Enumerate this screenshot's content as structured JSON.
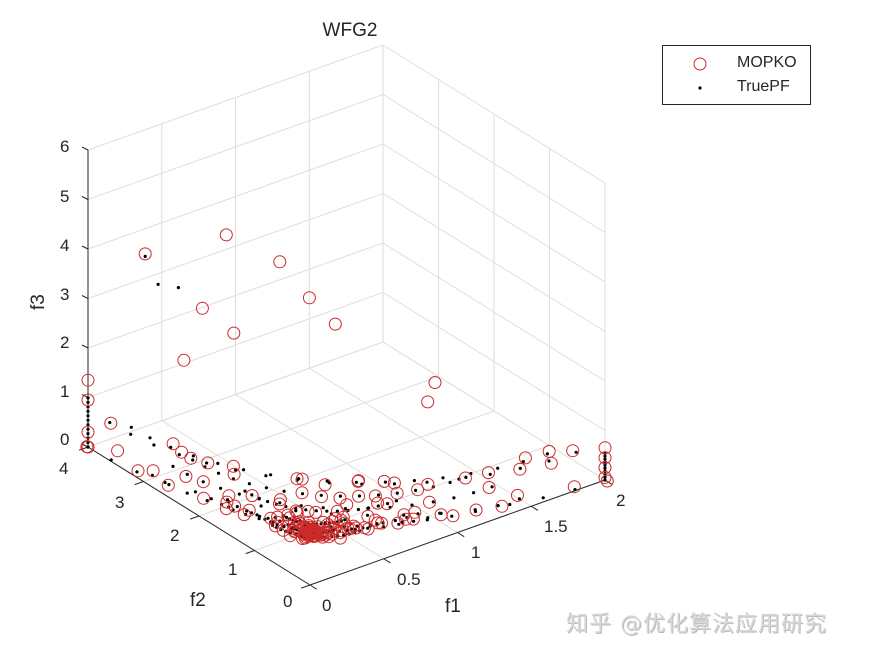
{
  "title": "WFG2",
  "legend": {
    "items": [
      {
        "label": "MOPKO",
        "marker": "circle-open",
        "color": "#cc2a2a"
      },
      {
        "label": "TruePF",
        "marker": "dot",
        "color": "#000000"
      }
    ]
  },
  "axes": {
    "x": {
      "label": "f1",
      "ticks": [
        "0",
        "0.5",
        "1",
        "1.5",
        "2"
      ],
      "range": [
        0,
        2
      ]
    },
    "y": {
      "label": "f2",
      "ticks": [
        "0",
        "1",
        "2",
        "3",
        "4"
      ],
      "range": [
        0,
        4
      ]
    },
    "z": {
      "label": "f3",
      "ticks": [
        "0",
        "1",
        "2",
        "3",
        "4",
        "5",
        "6"
      ],
      "range": [
        0,
        6
      ]
    }
  },
  "watermark": "知乎 @优化算法应用研究",
  "colors": {
    "mopko": "#cc2a2a",
    "truepf": "#000000",
    "grid": "#dedede",
    "axis": "#262626"
  },
  "chart_data": {
    "type": "scatter3d",
    "title": "WFG2",
    "xlabel": "f1",
    "ylabel": "f2",
    "zlabel": "f3",
    "xlim": [
      0,
      2
    ],
    "ylim": [
      0,
      4
    ],
    "zlim": [
      0,
      6
    ],
    "grid": true,
    "legend_position": "northeast-outside",
    "series": [
      {
        "name": "MOPKO",
        "marker": "open circle",
        "color": "#cc2a2a",
        "description": "Approximately 300 points lying on the disconnected WFG2 Pareto front, concentrated near f3<1 and spread over f1 in [0,2], f2 in [0,4]; isolated points reach f3 of about 3.6 near f1=0, f2=4"
      },
      {
        "name": "TruePF",
        "marker": "dot",
        "color": "#000000",
        "description": "Dense sampling of the true disconnected WFG2 Pareto front, drawn as ridge-like strips of points"
      }
    ],
    "sample_points": {
      "MOPKO": [
        [
          0,
          4,
          0.05
        ],
        [
          0,
          4,
          1.1
        ],
        [
          0,
          4,
          0.3
        ],
        [
          2,
          0,
          0.05
        ],
        [
          2,
          0,
          0.2
        ],
        [
          2,
          0,
          0.4
        ],
        [
          2,
          0,
          0.55
        ],
        [
          0.1,
          3.9,
          3.6
        ],
        [
          1.0,
          3.0,
          1.2
        ],
        [
          1.3,
          2.0,
          0.8
        ]
      ],
      "TruePF": [
        [
          0,
          4,
          0.0
        ],
        [
          0,
          4,
          0.9
        ],
        [
          2,
          0,
          0.0
        ],
        [
          2,
          0,
          0.5
        ],
        [
          1.0,
          2.0,
          0.3
        ]
      ]
    }
  }
}
